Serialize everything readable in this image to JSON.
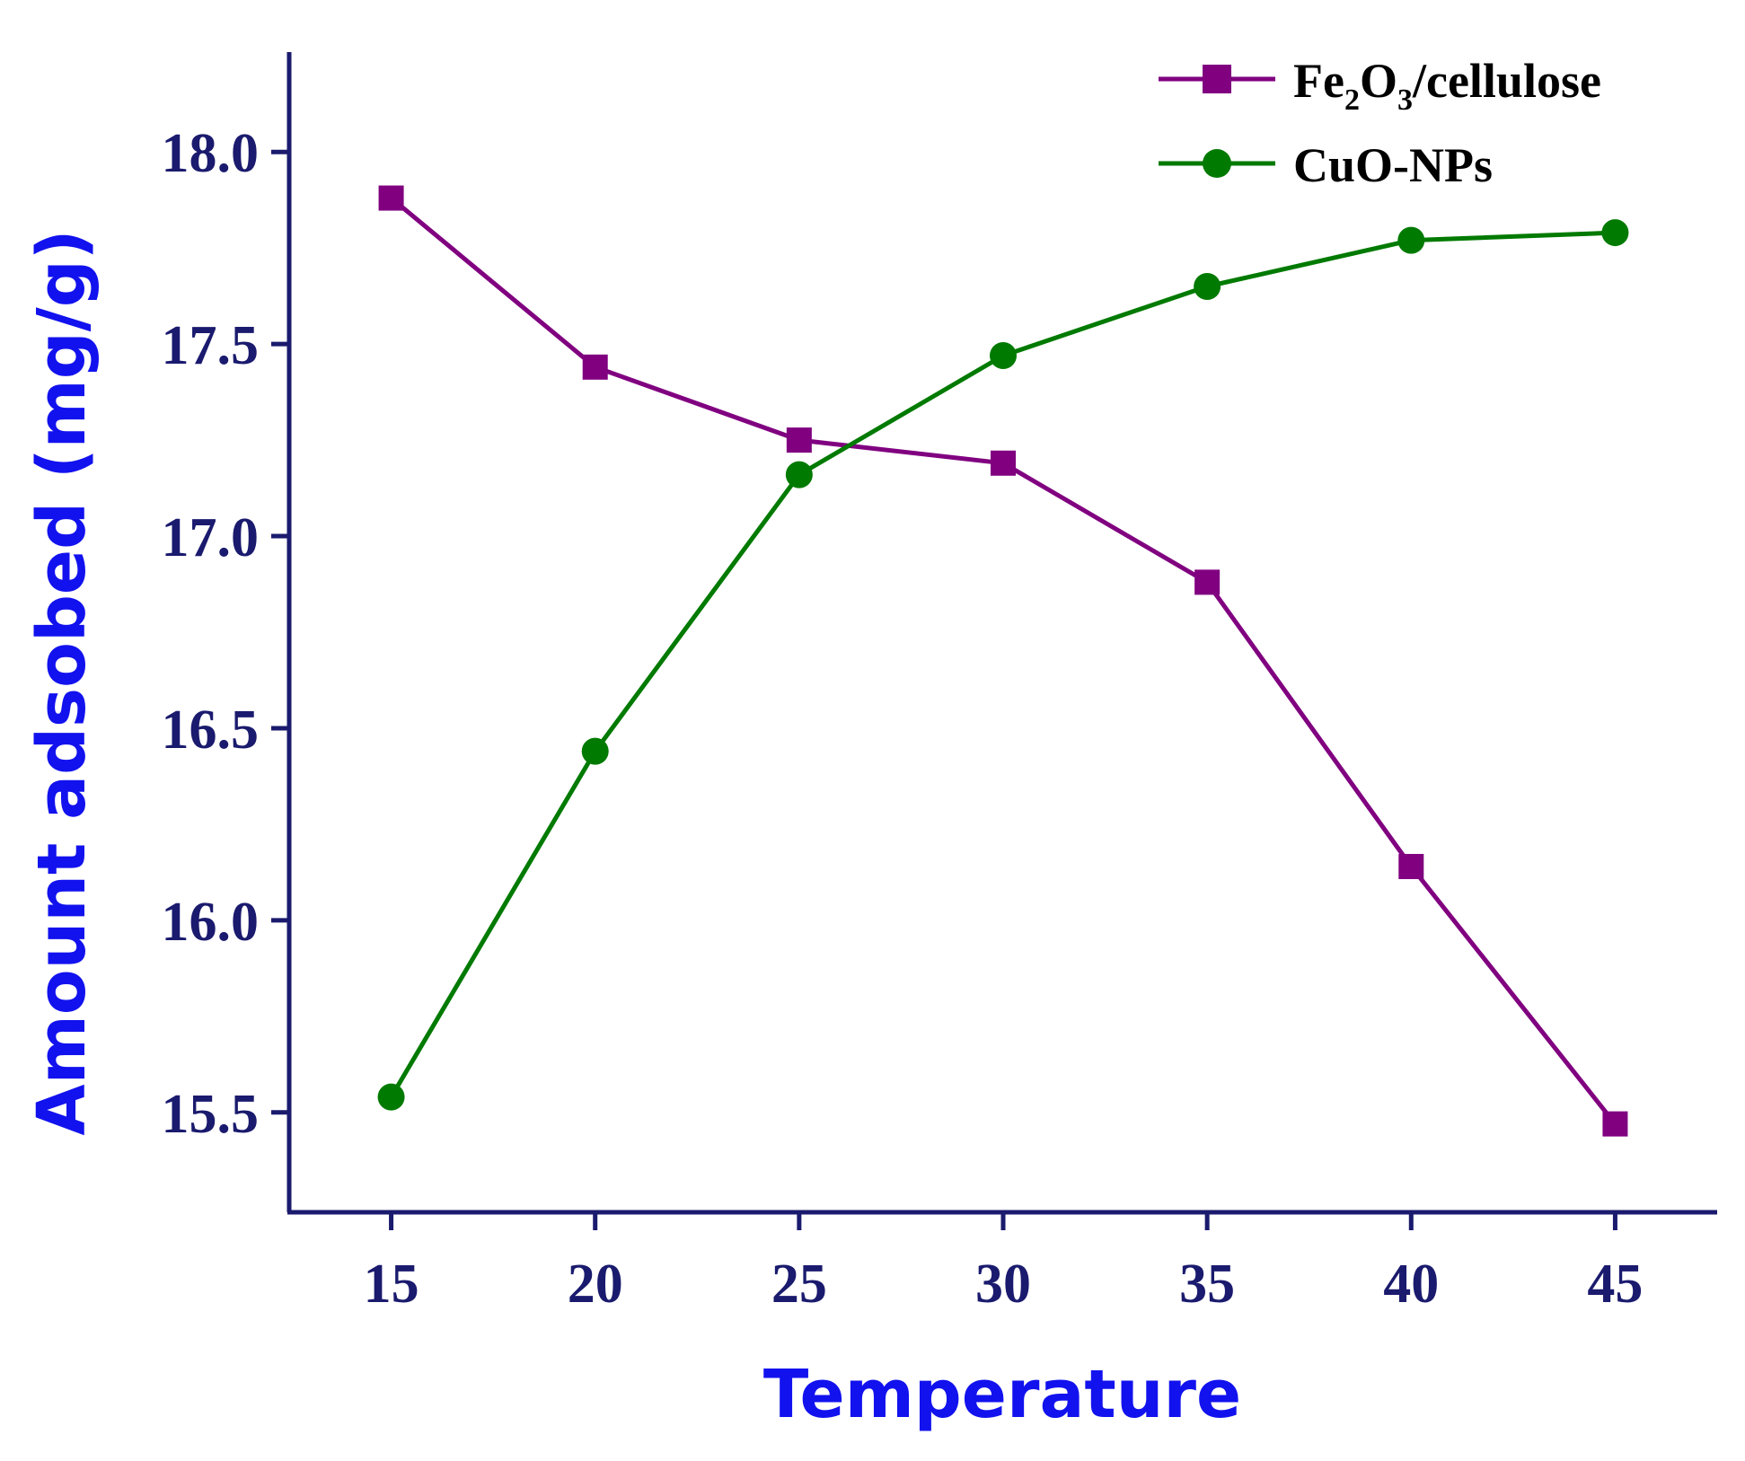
{
  "chart_data": {
    "type": "line",
    "title": "",
    "xlabel": "Temperature",
    "ylabel": "Amount adsobed (mg/g)",
    "x": [
      15,
      20,
      25,
      30,
      35,
      40,
      45
    ],
    "x_tick_labels": [
      "15",
      "20",
      "25",
      "30",
      "35",
      "40",
      "45"
    ],
    "y_tick_values": [
      15.5,
      16.0,
      16.5,
      17.0,
      17.5,
      18.0
    ],
    "y_tick_labels": [
      "15.5",
      "16.0",
      "16.5",
      "17.0",
      "17.5",
      "18.0"
    ],
    "xlim": [
      12.5,
      47.5
    ],
    "ylim": [
      15.24,
      18.26
    ],
    "grid": false,
    "legend_position": "top-right",
    "series": [
      {
        "name": "Fe2O3/cellulose",
        "legend_base_1": "Fe",
        "legend_sub_1": "2",
        "legend_base_2": "O",
        "legend_sub_2": "3",
        "legend_tail": "/cellulose",
        "marker": "square",
        "color": "#800080",
        "values": [
          17.88,
          17.44,
          17.25,
          17.19,
          16.88,
          16.14,
          15.47
        ]
      },
      {
        "name": "CuO-NPs",
        "marker": "circle",
        "color": "#007a00",
        "values": [
          15.54,
          16.44,
          17.16,
          17.47,
          17.65,
          17.77,
          17.79
        ]
      }
    ],
    "colors": {
      "axis": "#1a1a6e",
      "tick_label": "#1a1a6e",
      "axis_title": "#1212ee"
    }
  }
}
